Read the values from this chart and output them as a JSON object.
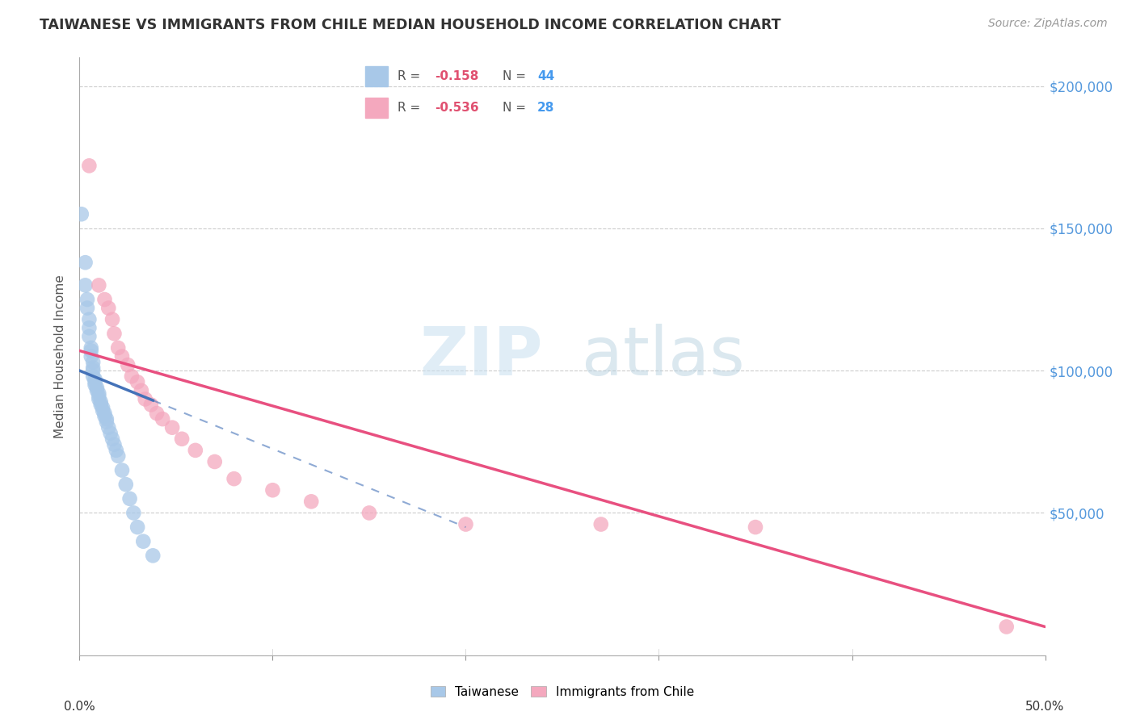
{
  "title": "TAIWANESE VS IMMIGRANTS FROM CHILE MEDIAN HOUSEHOLD INCOME CORRELATION CHART",
  "source": "Source: ZipAtlas.com",
  "ylabel": "Median Household Income",
  "background_color": "#ffffff",
  "grid_color": "#cccccc",
  "watermark_zip": "ZIP",
  "watermark_atlas": "atlas",
  "taiwanese_R": "-0.158",
  "taiwanese_N": "44",
  "chile_R": "-0.536",
  "chile_N": "28",
  "taiwanese_color": "#a8c8e8",
  "taiwanese_line_color": "#4472b8",
  "chile_color": "#f4a8be",
  "chile_line_color": "#e85080",
  "taiwanese_x": [
    0.001,
    0.003,
    0.003,
    0.004,
    0.004,
    0.005,
    0.005,
    0.005,
    0.006,
    0.006,
    0.006,
    0.007,
    0.007,
    0.007,
    0.007,
    0.008,
    0.008,
    0.008,
    0.009,
    0.009,
    0.01,
    0.01,
    0.01,
    0.011,
    0.011,
    0.012,
    0.012,
    0.013,
    0.013,
    0.014,
    0.014,
    0.015,
    0.016,
    0.017,
    0.018,
    0.019,
    0.02,
    0.022,
    0.024,
    0.026,
    0.028,
    0.03,
    0.033,
    0.038
  ],
  "taiwanese_y": [
    155000,
    138000,
    130000,
    125000,
    122000,
    118000,
    115000,
    112000,
    108000,
    107000,
    105000,
    103000,
    101000,
    100000,
    98000,
    97000,
    96000,
    95000,
    94000,
    93000,
    92000,
    91000,
    90000,
    89000,
    88000,
    87000,
    86000,
    85000,
    84000,
    83000,
    82000,
    80000,
    78000,
    76000,
    74000,
    72000,
    70000,
    65000,
    60000,
    55000,
    50000,
    45000,
    40000,
    35000
  ],
  "chile_x": [
    0.005,
    0.01,
    0.013,
    0.015,
    0.017,
    0.018,
    0.02,
    0.022,
    0.025,
    0.027,
    0.03,
    0.032,
    0.034,
    0.037,
    0.04,
    0.043,
    0.048,
    0.053,
    0.06,
    0.07,
    0.08,
    0.1,
    0.12,
    0.15,
    0.2,
    0.27,
    0.35,
    0.48
  ],
  "chile_y": [
    172000,
    130000,
    125000,
    122000,
    118000,
    113000,
    108000,
    105000,
    102000,
    98000,
    96000,
    93000,
    90000,
    88000,
    85000,
    83000,
    80000,
    76000,
    72000,
    68000,
    62000,
    58000,
    54000,
    50000,
    46000,
    46000,
    45000,
    10000
  ],
  "chile_line_x0": 0.0,
  "chile_line_y0": 107000,
  "chile_line_x1": 0.5,
  "chile_line_y1": 10000,
  "tw_line_x0": 0.0,
  "tw_line_y0": 100000,
  "tw_line_x1": 0.12,
  "tw_line_y1": 67000,
  "y_ticks": [
    0,
    50000,
    100000,
    150000,
    200000
  ],
  "y_tick_labels_right": [
    "",
    "$50,000",
    "$100,000",
    "$150,000",
    "$200,000"
  ],
  "xlim": [
    0,
    0.5
  ],
  "ylim": [
    0,
    210000
  ]
}
